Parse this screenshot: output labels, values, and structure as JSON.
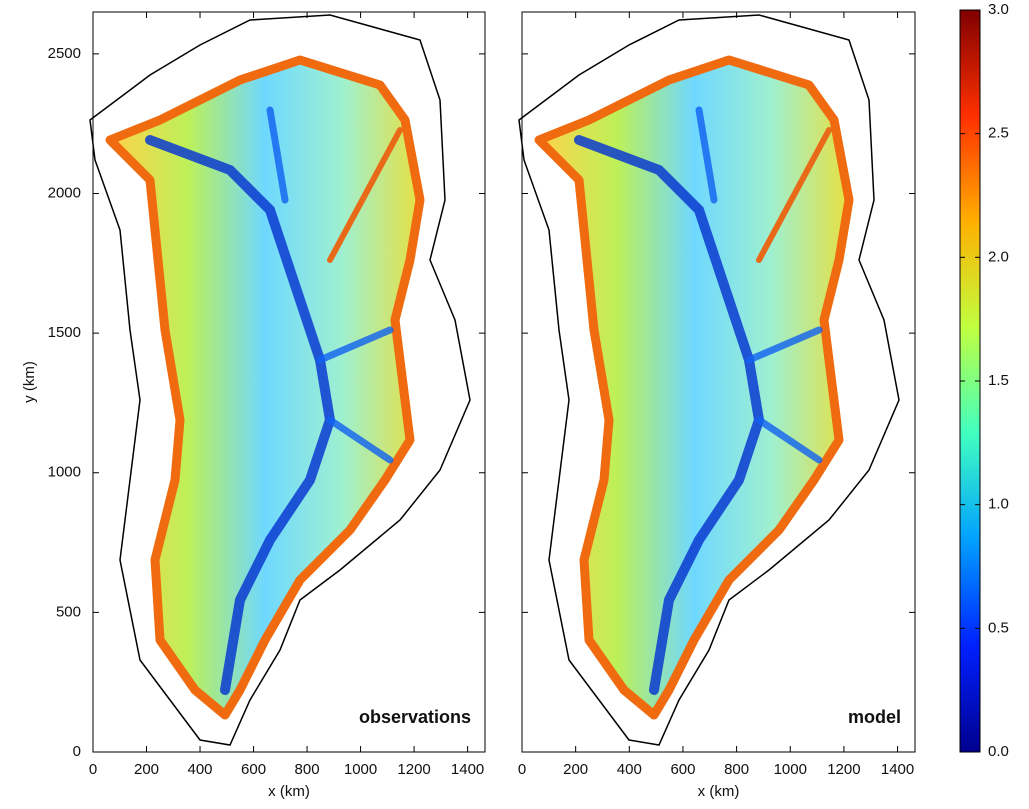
{
  "chart_data": [
    {
      "type": "map",
      "annotation": "observations",
      "xlabel": "x (km)",
      "ylabel": "y (km)",
      "xlim": [
        0,
        1465
      ],
      "xticks": [
        0,
        200,
        400,
        600,
        800,
        1000,
        1200,
        1400
      ],
      "ylim": [
        0,
        2650
      ],
      "yticks": [
        0,
        500,
        1000,
        1500,
        2000,
        2500
      ]
    },
    {
      "type": "map",
      "annotation": "model",
      "xlabel": "x (km)",
      "xlim": [
        0,
        1465
      ],
      "xticks": [
        0,
        200,
        400,
        600,
        800,
        1000,
        1200,
        1400
      ]
    },
    {
      "type": "colorbar",
      "ylim": [
        0,
        3
      ],
      "yticks": [
        {
          "value": 0,
          "label": "0.0"
        },
        0.5,
        {
          "value": 1,
          "label": "1.0"
        },
        1.5,
        {
          "value": 2,
          "label": "2.0"
        },
        2.5,
        {
          "value": 3,
          "label": "3.0"
        }
      ],
      "colors": [
        "#00008f",
        "#0020ff",
        "#00a0ff",
        "#40ffc0",
        "#c0ff40",
        "#ffb000",
        "#ff3000",
        "#800000"
      ]
    }
  ]
}
